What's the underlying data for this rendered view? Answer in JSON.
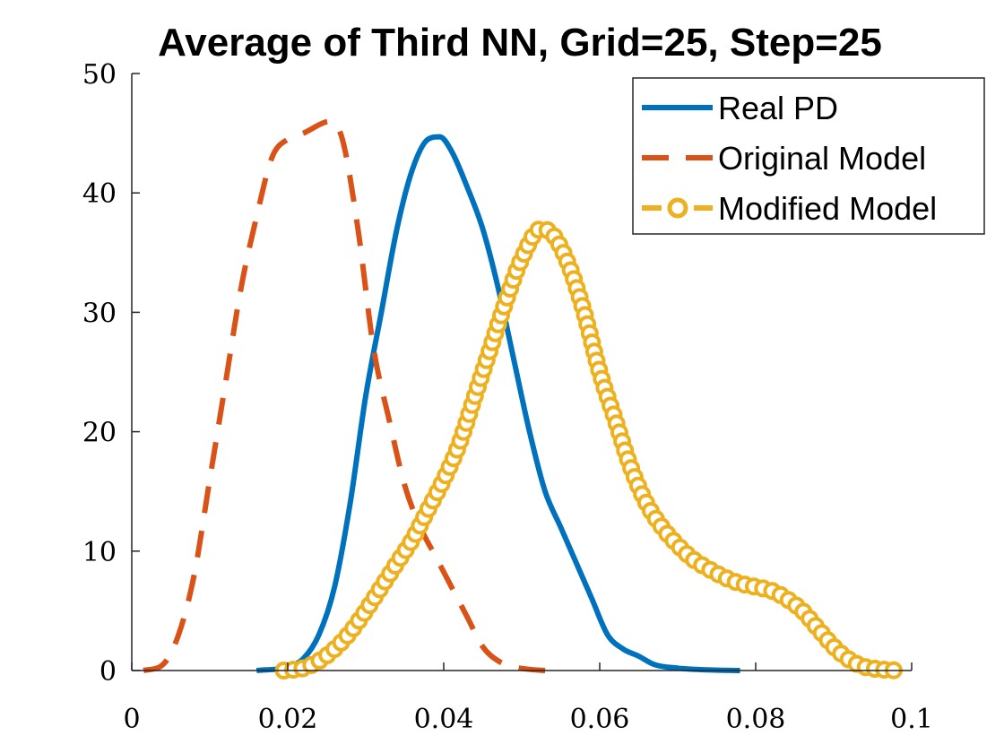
{
  "chart_data": {
    "type": "line",
    "title": "Average of Third NN, Grid=25, Step=25",
    "xlabel": "",
    "ylabel": "",
    "xlim": [
      0,
      0.1
    ],
    "ylim": [
      0,
      50
    ],
    "x_ticks": [
      "0",
      "0.02",
      "0.04",
      "0.06",
      "0.08",
      "0.1"
    ],
    "y_ticks": [
      "0",
      "10",
      "20",
      "30",
      "40",
      "50"
    ],
    "grid": false,
    "legend_position": "top-right",
    "series": [
      {
        "name": "Real PD",
        "color": "#0072BD",
        "style": "solid",
        "x": [
          0.016,
          0.02,
          0.022,
          0.024,
          0.026,
          0.028,
          0.03,
          0.032,
          0.034,
          0.036,
          0.038,
          0.0395,
          0.041,
          0.043,
          0.045,
          0.047,
          0.049,
          0.051,
          0.053,
          0.055,
          0.057,
          0.059,
          0.061,
          0.063,
          0.065,
          0.067,
          0.07,
          0.074,
          0.078
        ],
        "y": [
          0,
          0.3,
          1,
          3,
          7,
          14,
          23,
          30,
          37,
          42,
          44.5,
          44.7,
          43.5,
          40.5,
          37,
          32,
          26,
          20,
          15,
          12,
          9,
          6,
          3,
          1.8,
          1.2,
          0.5,
          0.2,
          0.05,
          0
        ]
      },
      {
        "name": "Original Model",
        "color": "#D95319",
        "style": "dashed",
        "x": [
          0.0015,
          0.004,
          0.006,
          0.008,
          0.01,
          0.012,
          0.014,
          0.016,
          0.018,
          0.02,
          0.022,
          0.0255,
          0.027,
          0.029,
          0.031,
          0.033,
          0.035,
          0.037,
          0.039,
          0.041,
          0.043,
          0.045,
          0.047,
          0.049,
          0.051,
          0.053
        ],
        "y": [
          0,
          0.5,
          3,
          8,
          16,
          24,
          32,
          38,
          43,
          44.5,
          45,
          46,
          44.5,
          37,
          27,
          21,
          15.5,
          12,
          9.5,
          7,
          4.5,
          2,
          0.8,
          0.3,
          0.1,
          0
        ]
      },
      {
        "name": "Modified Model",
        "color": "#EDB120",
        "style": "dash-circle",
        "x": [
          0.0195,
          0.022,
          0.024,
          0.026,
          0.028,
          0.03,
          0.032,
          0.034,
          0.036,
          0.038,
          0.04,
          0.042,
          0.044,
          0.046,
          0.048,
          0.05,
          0.0525,
          0.054,
          0.056,
          0.058,
          0.06,
          0.062,
          0.064,
          0.066,
          0.068,
          0.07,
          0.072,
          0.074,
          0.076,
          0.078,
          0.08,
          0.082,
          0.084,
          0.086,
          0.088,
          0.09,
          0.092,
          0.094,
          0.096,
          0.0985
        ],
        "y": [
          0,
          0.2,
          0.8,
          1.8,
          3.2,
          5,
          7,
          9,
          11,
          13.5,
          16,
          19,
          23,
          27,
          31,
          34.5,
          37,
          36.5,
          34,
          30,
          25,
          21,
          17,
          14,
          12,
          10.5,
          9.3,
          8.5,
          7.8,
          7.3,
          7,
          6.7,
          6,
          5,
          3.5,
          2,
          0.9,
          0.3,
          0.1,
          0
        ]
      }
    ]
  }
}
